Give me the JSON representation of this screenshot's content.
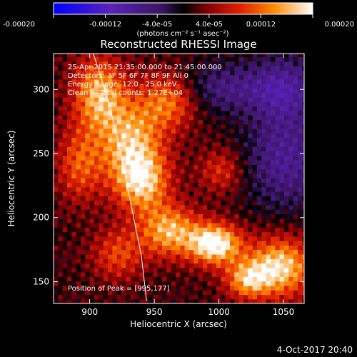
{
  "chart_data": {
    "type": "heatmap",
    "title": "Reconstructed RHESSI Image",
    "xlabel": "Heliocentric X (arcsec)",
    "ylabel": "Heliocentric Y (arcsec)",
    "xlim": [
      872,
      1066
    ],
    "ylim": [
      133,
      328
    ],
    "xticks": [
      900,
      950,
      1000,
      1050
    ],
    "yticks": [
      150,
      200,
      250,
      300
    ],
    "colorbar": {
      "label": "(photons cm⁻² s⁻¹ asec⁻²)",
      "range": [
        -0.0002,
        0.0002
      ],
      "ticks": [
        "-0.00020",
        "-0.00012",
        "-4.0e-05",
        "4.0e-05",
        "0.00012",
        "0.00020"
      ]
    },
    "annotations": [
      "25-Apr-2015 21:35:00.000 to 21:45:00.000",
      "Detectors: 3F 5F 6F 7F 8F 9F All 0",
      "Energy Range: 12.0 - 25.0 keV",
      "Clean — Total counts: 1.27E+04"
    ],
    "peak_label": "Position of Peak = [995,177]",
    "peak": [
      995,
      177
    ],
    "limb": [
      [
        902,
        330
      ],
      [
        912,
        300
      ],
      [
        922,
        260
      ],
      [
        932,
        210
      ],
      [
        940,
        170
      ],
      [
        944,
        135
      ]
    ],
    "sources": [
      {
        "x": 995,
        "y": 178,
        "amp": 1.0,
        "sx": 14,
        "sy": 11
      },
      {
        "x": 960,
        "y": 188,
        "amp": 0.72,
        "sx": 16,
        "sy": 14
      },
      {
        "x": 1045,
        "y": 160,
        "amp": 0.85,
        "sx": 18,
        "sy": 16
      },
      {
        "x": 1020,
        "y": 150,
        "amp": 0.6,
        "sx": 12,
        "sy": 10
      },
      {
        "x": 930,
        "y": 255,
        "amp": 0.75,
        "sx": 18,
        "sy": 25
      },
      {
        "x": 905,
        "y": 295,
        "amp": 0.7,
        "sx": 14,
        "sy": 20
      },
      {
        "x": 960,
        "y": 290,
        "amp": 0.55,
        "sx": 15,
        "sy": 15
      },
      {
        "x": 940,
        "y": 225,
        "amp": 0.6,
        "sx": 14,
        "sy": 16
      },
      {
        "x": 890,
        "y": 240,
        "amp": 0.45,
        "sx": 12,
        "sy": 20
      },
      {
        "x": 920,
        "y": 170,
        "amp": 0.42,
        "sx": 14,
        "sy": 14
      },
      {
        "x": 1000,
        "y": 235,
        "amp": 0.35,
        "sx": 12,
        "sy": 12
      },
      {
        "x": 1005,
        "y": 300,
        "amp": -0.35,
        "sx": 28,
        "sy": 14
      },
      {
        "x": 1050,
        "y": 245,
        "amp": -0.45,
        "sx": 22,
        "sy": 28
      },
      {
        "x": 1050,
        "y": 300,
        "amp": -0.4,
        "sx": 18,
        "sy": 18
      }
    ]
  },
  "footer": {
    "timestamp": "4-Oct-2017 20:40"
  }
}
